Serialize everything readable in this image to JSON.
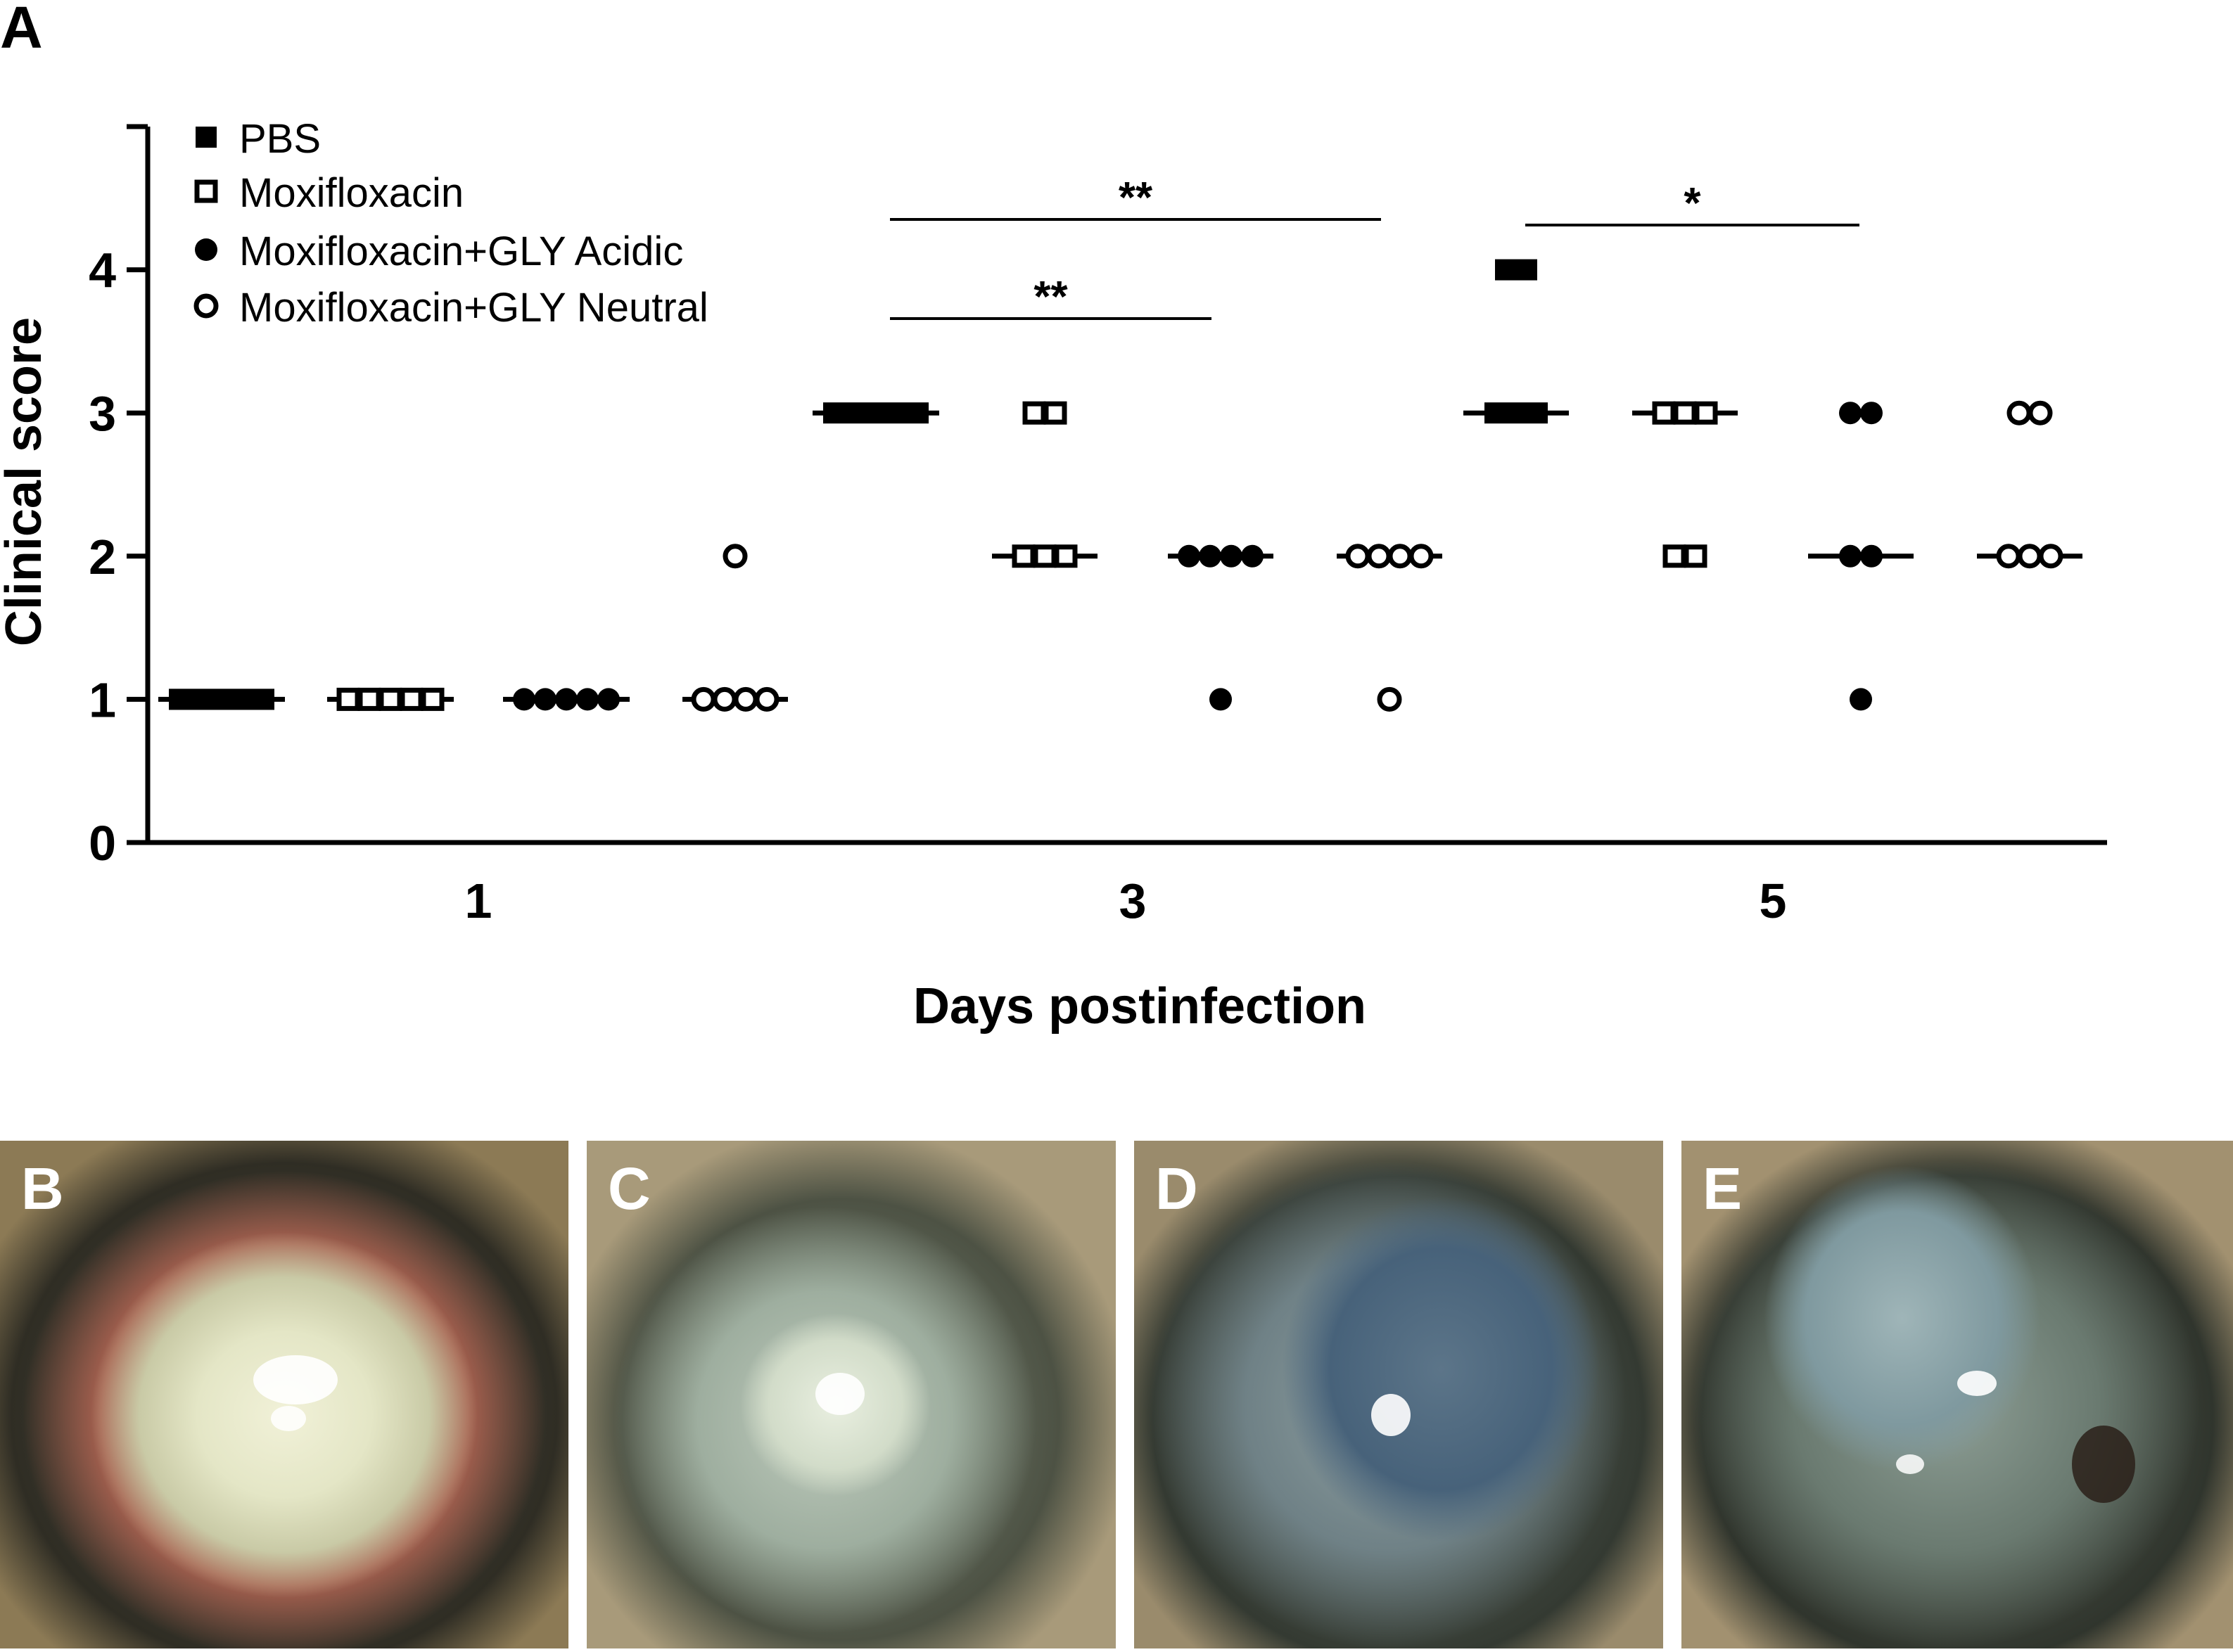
{
  "panel_label": "A",
  "chart_data": {
    "type": "scatter",
    "xlabel": "Days postinfection",
    "ylabel": "Clinical score",
    "ylim": [
      0,
      5
    ],
    "yticks": [
      "0",
      "1",
      "2",
      "3",
      "4"
    ],
    "categories": [
      "1",
      "3",
      "5"
    ],
    "grid": false,
    "legend_position": "top-left",
    "series": [
      {
        "name": "PBS",
        "marker": "filled-square",
        "values": {
          "1": [
            1,
            1,
            1,
            1,
            1
          ],
          "3": [
            3,
            3,
            3,
            3,
            3
          ],
          "5": [
            4,
            4,
            3,
            3,
            3
          ]
        }
      },
      {
        "name": "Moxifloxacin",
        "marker": "open-square",
        "values": {
          "1": [
            1,
            1,
            1,
            1,
            1
          ],
          "3": [
            3,
            3,
            2,
            2,
            2
          ],
          "5": [
            3,
            3,
            3,
            2,
            2
          ]
        }
      },
      {
        "name": "Moxifloxacin+GLY Acidic",
        "marker": "filled-circle",
        "values": {
          "1": [
            1,
            1,
            1,
            1,
            1
          ],
          "3": [
            2,
            2,
            2,
            2,
            1
          ],
          "5": [
            3,
            3,
            2,
            2,
            1
          ]
        }
      },
      {
        "name": "Moxifloxacin+GLY Neutral",
        "marker": "open-circle",
        "values": {
          "1": [
            2,
            1,
            1,
            1,
            1
          ],
          "3": [
            2,
            2,
            2,
            2,
            1
          ],
          "5": [
            3,
            3,
            2,
            2,
            2
          ]
        }
      }
    ],
    "significance": [
      {
        "label": "**",
        "day": "3",
        "from": "PBS",
        "to": "Moxifloxacin+GLY Neutral"
      },
      {
        "label": "**",
        "day": "3",
        "from": "PBS",
        "to": "Moxifloxacin+GLY Acidic"
      },
      {
        "label": "*",
        "day": "5",
        "from": "PBS",
        "to": "Moxifloxacin+GLY Acidic"
      }
    ]
  },
  "photos": [
    {
      "label": "B"
    },
    {
      "label": "C"
    },
    {
      "label": "D"
    },
    {
      "label": "E"
    }
  ]
}
